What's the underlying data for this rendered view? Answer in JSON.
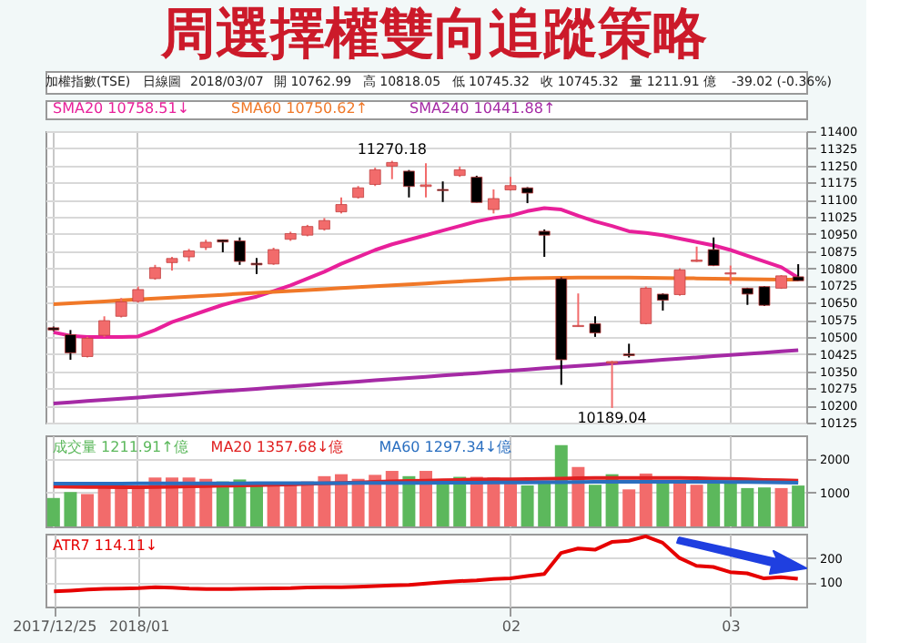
{
  "chart_data": [
    {
      "type": "candlestick",
      "title": "周選擇權雙向追蹤策略",
      "annotations": [
        "加權指數(TSE)",
        "日線圖",
        "2018/03/07",
        "開 10762.99",
        "高 10818.05",
        "低 10745.32",
        "收 10745.32",
        "量 1211.91 億",
        "-39.02 (-0.36%)",
        {
          "text": "11270.18",
          "y": 11270.18
        },
        {
          "text": "10189.04",
          "y": 10189.04
        }
      ],
      "categories": [
        "2017/12/25",
        null,
        null,
        null,
        null,
        "2018/01",
        null,
        null,
        null,
        null,
        null,
        null,
        null,
        null,
        null,
        null,
        null,
        null,
        null,
        null,
        null,
        null,
        null,
        null,
        null,
        null,
        null,
        "02",
        null,
        null,
        null,
        null,
        null,
        null,
        null,
        null,
        null,
        null,
        null,
        null,
        "03",
        null,
        null,
        null,
        null
      ],
      "ohlc": [
        [
          10540,
          10545,
          10525,
          10530
        ],
        [
          10510,
          10530,
          10400,
          10430
        ],
        [
          10414,
          10500,
          10410,
          10494
        ],
        [
          10507,
          10590,
          10500,
          10571
        ],
        [
          10590,
          10670,
          10585,
          10653
        ],
        [
          10655,
          10720,
          10650,
          10707
        ],
        [
          10755,
          10815,
          10750,
          10803
        ],
        [
          10825,
          10850,
          10790,
          10843
        ],
        [
          10850,
          10885,
          10830,
          10876
        ],
        [
          10891,
          10925,
          10880,
          10914
        ],
        [
          10925,
          10925,
          10870,
          10915
        ],
        [
          10920,
          10935,
          10815,
          10830
        ],
        [
          10822,
          10845,
          10775,
          10815
        ],
        [
          10819,
          10890,
          10815,
          10882
        ],
        [
          10927,
          10960,
          10920,
          10952
        ],
        [
          10945,
          10990,
          10940,
          10983
        ],
        [
          10971,
          11020,
          10965,
          11009
        ],
        [
          11047,
          11110,
          11040,
          11079
        ],
        [
          11110,
          11160,
          11105,
          11152
        ],
        [
          11167,
          11240,
          11160,
          11231
        ],
        [
          11247,
          11270.18,
          11190,
          11263
        ],
        [
          11225,
          11230,
          11110,
          11158
        ],
        [
          11158,
          11260,
          11110,
          11165
        ],
        [
          11145,
          11180,
          11090,
          11140
        ],
        [
          11206,
          11245,
          11200,
          11231
        ],
        [
          11199,
          11205,
          11088,
          11088
        ],
        [
          11057,
          11145,
          11040,
          11105
        ],
        [
          11143,
          11200,
          11140,
          11162
        ],
        [
          11152,
          11155,
          11085,
          11129
        ],
        [
          10962,
          10970,
          10850,
          10945
        ],
        [
          10755,
          10760,
          10290,
          10400
        ],
        [
          10545,
          10690,
          10545,
          10550
        ],
        [
          10558,
          10590,
          10500,
          10517
        ],
        [
          10385,
          10395,
          10189.04,
          10392
        ],
        [
          10425,
          10470,
          10410,
          10418
        ],
        [
          10558,
          10720,
          10555,
          10713
        ],
        [
          10687,
          10690,
          10615,
          10660
        ],
        [
          10685,
          10800,
          10680,
          10793
        ],
        [
          10830,
          10895,
          10828,
          10836
        ],
        [
          10882,
          10935,
          10810,
          10812
        ],
        [
          10775,
          10812,
          10730,
          10780
        ],
        [
          10713,
          10715,
          10640,
          10687
        ],
        [
          10720,
          10722,
          10635,
          10638
        ],
        [
          10713,
          10770,
          10710,
          10767
        ],
        [
          10762.99,
          10818.05,
          10745.32,
          10745.32
        ]
      ],
      "colors": [
        "#000000",
        "#000000",
        "#f26b6b",
        "#f26b6b",
        "#f26b6b",
        "#f26b6b",
        "#f26b6b",
        "#f26b6b",
        "#f26b6b",
        "#f26b6b",
        "#000000",
        "#000000",
        "#000000",
        "#f26b6b",
        "#f26b6b",
        "#f26b6b",
        "#f26b6b",
        "#f26b6b",
        "#f26b6b",
        "#f26b6b",
        "#f26b6b",
        "#000000",
        "#f26b6b",
        "#000000",
        "#f26b6b",
        "#000000",
        "#f26b6b",
        "#f26b6b",
        "#000000",
        "#000000",
        "#000000",
        "#f26b6b",
        "#000000",
        "#f26b6b",
        "#000000",
        "#f26b6b",
        "#000000",
        "#f26b6b",
        "#f26b6b",
        "#000000",
        "#f26b6b",
        "#000000",
        "#000000",
        "#f26b6b",
        "#000000"
      ],
      "series": [
        {
          "name": "SMA20 10758.51↓",
          "type": "line",
          "color": "#e8209a",
          "values": [
            10520,
            10505,
            10500,
            10500,
            10500,
            10502,
            10530,
            10565,
            10590,
            10615,
            10640,
            10660,
            10676,
            10700,
            10725,
            10755,
            10785,
            10820,
            10850,
            10880,
            10905,
            10925,
            10945,
            10965,
            10985,
            11005,
            11020,
            11030,
            11050,
            11063,
            11057,
            11030,
            11005,
            10985,
            10962,
            10955,
            10945,
            10930,
            10915,
            10900,
            10880,
            10855,
            10830,
            10805,
            10758.51
          ]
        },
        {
          "name": "SMA60 10750.62↑",
          "type": "line",
          "color": "#f07828",
          "values": [
            10643,
            10647,
            10651,
            10655,
            10660,
            10664,
            10668,
            10672,
            10676,
            10680,
            10684,
            10689,
            10693,
            10697,
            10701,
            10705,
            10709,
            10714,
            10718,
            10722,
            10726,
            10730,
            10734,
            10739,
            10743,
            10747,
            10751,
            10755,
            10757,
            10758,
            10759,
            10760,
            10760,
            10760,
            10760,
            10759,
            10758,
            10757,
            10756,
            10755,
            10754,
            10753,
            10752,
            10751,
            10750.62
          ]
        },
        {
          "name": "SMA240 10441.88↑",
          "type": "line",
          "color": "#a52aa5",
          "values": [
            10209,
            10214,
            10220,
            10225,
            10230,
            10235,
            10241,
            10246,
            10251,
            10257,
            10262,
            10267,
            10272,
            10278,
            10283,
            10288,
            10294,
            10299,
            10304,
            10310,
            10315,
            10320,
            10325,
            10331,
            10336,
            10341,
            10347,
            10352,
            10357,
            10363,
            10368,
            10373,
            10378,
            10384,
            10389,
            10394,
            10400,
            10405,
            10410,
            10416,
            10421,
            10426,
            10431,
            10437,
            10441.88
          ]
        }
      ],
      "ylim": [
        10125,
        11400
      ],
      "yticks": [
        10125,
        10200,
        10275,
        10350,
        10425,
        10500,
        10575,
        10650,
        10725,
        10800,
        10875,
        10950,
        11025,
        11100,
        11175,
        11250,
        11325,
        11400
      ],
      "grid": true,
      "legend": "top left",
      "tick_labels": "y"
    },
    {
      "type": "bar",
      "categories": [
        "2017/12/25",
        null,
        null,
        null,
        null,
        "2018/01",
        null,
        null,
        null,
        null,
        null,
        null,
        null,
        null,
        null,
        null,
        null,
        null,
        null,
        null,
        null,
        null,
        null,
        null,
        null,
        null,
        null,
        "02",
        null,
        null,
        null,
        null,
        null,
        null,
        null,
        null,
        null,
        null,
        null,
        null,
        "03",
        null,
        null,
        null,
        null
      ],
      "series": [
        {
          "name": "成交量 1211.91↑億",
          "type": "bar",
          "colors": [
            "#5cb85c",
            "#5cb85c",
            "#f26b6b",
            "#f26b6b",
            "#f26b6b",
            "#f26b6b",
            "#f26b6b",
            "#f26b6b",
            "#f26b6b",
            "#f26b6b",
            "#5cb85c",
            "#5cb85c",
            "#5cb85c",
            "#f26b6b",
            "#f26b6b",
            "#f26b6b",
            "#f26b6b",
            "#f26b6b",
            "#f26b6b",
            "#f26b6b",
            "#f26b6b",
            "#5cb85c",
            "#f26b6b",
            "#5cb85c",
            "#5cb85c",
            "#f26b6b",
            "#f26b6b",
            "#f26b6b",
            "#5cb85c",
            "#5cb85c",
            "#5cb85c",
            "#f26b6b",
            "#5cb85c",
            "#5cb85c",
            "#f26b6b",
            "#f26b6b",
            "#5cb85c",
            "#f26b6b",
            "#f26b6b",
            "#5cb85c",
            "#5cb85c",
            "#5cb85c",
            "#5cb85c",
            "#f26b6b",
            "#5cb85c"
          ],
          "values": [
            843,
            1019,
            960,
            1137,
            1137,
            1137,
            1450,
            1450,
            1450,
            1411,
            1333,
            1392,
            1274,
            1294,
            1294,
            1333,
            1490,
            1548,
            1411,
            1529,
            1646,
            1490,
            1646,
            1372,
            1470,
            1470,
            1450,
            1294,
            1215,
            1333,
            2411,
            1764,
            1235,
            1548,
            1098,
            1568,
            1333,
            1294,
            1235,
            1333,
            1333,
            1137,
            1156,
            1137,
            1211.91
          ]
        },
        {
          "name": "MA20 1357.68↓億",
          "type": "line",
          "color": "#e02020",
          "values": [
            1180,
            1175,
            1170,
            1165,
            1160,
            1160,
            1165,
            1175,
            1185,
            1195,
            1205,
            1215,
            1225,
            1235,
            1245,
            1260,
            1275,
            1290,
            1305,
            1320,
            1335,
            1350,
            1360,
            1370,
            1380,
            1390,
            1395,
            1400,
            1405,
            1410,
            1420,
            1430,
            1435,
            1440,
            1440,
            1440,
            1440,
            1435,
            1430,
            1420,
            1410,
            1395,
            1380,
            1370,
            1357.68
          ]
        },
        {
          "name": "MA60 1297.34↓億",
          "type": "line",
          "color": "#2a6fc0",
          "values": [
            1270,
            1270,
            1270,
            1271,
            1272,
            1273,
            1274,
            1275,
            1276,
            1277,
            1278,
            1279,
            1280,
            1281,
            1282,
            1283,
            1284,
            1285,
            1286,
            1287,
            1288,
            1290,
            1292,
            1294,
            1296,
            1298,
            1300,
            1302,
            1305,
            1308,
            1312,
            1316,
            1320,
            1322,
            1324,
            1325,
            1326,
            1326,
            1325,
            1322,
            1318,
            1313,
            1308,
            1302,
            1297.34
          ]
        }
      ],
      "ylim": [
        0,
        2700
      ],
      "yticks": [
        1000,
        2000
      ],
      "grid": true,
      "legend": "top left",
      "tick_labels": "y"
    },
    {
      "type": "line",
      "categories": [
        "2017/12/25",
        null,
        null,
        null,
        null,
        "2018/01",
        null,
        null,
        null,
        null,
        null,
        null,
        null,
        null,
        null,
        null,
        null,
        null,
        null,
        null,
        null,
        null,
        null,
        null,
        null,
        null,
        null,
        "02",
        null,
        null,
        null,
        null,
        null,
        null,
        null,
        null,
        null,
        null,
        null,
        null,
        "03",
        null,
        null,
        null,
        null
      ],
      "series": [
        {
          "name": "ATR7 114.11↓",
          "color": "#e60000",
          "values": [
            63,
            66,
            70,
            73,
            74,
            76,
            80,
            78,
            74,
            72,
            72,
            73,
            74,
            75,
            76,
            79,
            80,
            80,
            82,
            84,
            87,
            89,
            95,
            100,
            105,
            108,
            113,
            116,
            126,
            134,
            221,
            239,
            234,
            266,
            271,
            289,
            263,
            200,
            168,
            163,
            142,
            137,
            116,
            121,
            114.11
          ]
        }
      ],
      "ylim": [
        0,
        300
      ],
      "yticks": [
        100,
        200
      ],
      "grid": true,
      "legend": "top left"
    }
  ]
}
